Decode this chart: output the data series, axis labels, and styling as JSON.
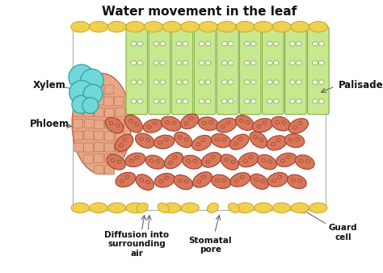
{
  "title": "Water movement in the leaf",
  "title_fontsize": 11,
  "title_fontweight": "bold",
  "bg_color": "#ffffff",
  "colors": {
    "epidermal": "#f0d050",
    "epidermal_edge": "#c8a820",
    "palisade_fill": "#c8e890",
    "palisade_edge": "#80b040",
    "chloroplast_fill": "#ffffff",
    "chloroplast_edge": "#80b040",
    "spongy_fill": "#d8785a",
    "spongy_edge": "#a04030",
    "spongy_spot": "#f0b090",
    "xylem_fill": "#70d8d8",
    "xylem_edge": "#30a0a0",
    "phloem_fill": "#e8a888",
    "phloem_edge": "#b86848",
    "phloem_cell_edge": "#c07858",
    "label_color": "#111111",
    "arrow_color": "#555555",
    "border_color": "#aaaaaa"
  },
  "labels": {
    "xylem": "Xylem",
    "phloem": "Phloem",
    "palisade": "Palisade",
    "diffusion": "Diffusion into\nsurrounding\nair",
    "stomatal_pore": "Stomatal\npore",
    "guard_cell": "Guard\ncell"
  }
}
